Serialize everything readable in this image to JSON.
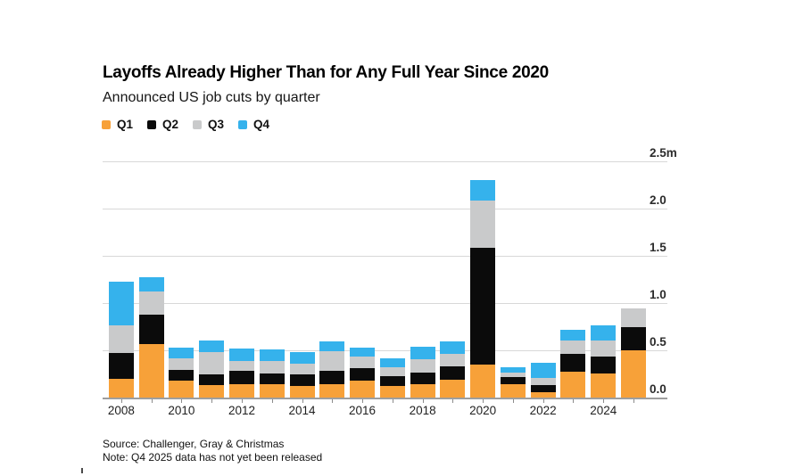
{
  "header": {
    "title": "Layoffs Already Higher Than for Any Full Year Since 2020",
    "subtitle": "Announced US job cuts by quarter"
  },
  "legend": [
    {
      "label": "Q1",
      "color": "#f7a139"
    },
    {
      "label": "Q2",
      "color": "#0b0b0b"
    },
    {
      "label": "Q3",
      "color": "#c9cacb"
    },
    {
      "label": "Q4",
      "color": "#35b2ec"
    }
  ],
  "colors": {
    "background": "#ffffff",
    "grid": "#d8d8d8",
    "axis": "#9e9e9e",
    "tick": "#8c8c8c",
    "q1_orange": "#f7a139",
    "q2_black": "#0b0b0b",
    "q3_gray": "#c9cacb",
    "q4_blue": "#35b2ec"
  },
  "chart_data": {
    "type": "bar",
    "stacked": true,
    "title": "Layoffs Already Higher Than for Any Full Year Since 2020",
    "subtitle": "Announced US job cuts by quarter",
    "unit": "millions of announced US job cuts",
    "categories": [
      "2008",
      "2009",
      "2010",
      "2011",
      "2012",
      "2013",
      "2014",
      "2015",
      "2016",
      "2017",
      "2018",
      "2019",
      "2020",
      "2021",
      "2022",
      "2023",
      "2024",
      "2025"
    ],
    "series": [
      {
        "name": "Q1",
        "color": "#f7a139",
        "values": [
          0.201,
          0.563,
          0.181,
          0.131,
          0.143,
          0.145,
          0.121,
          0.14,
          0.181,
          0.126,
          0.14,
          0.19,
          0.347,
          0.145,
          0.056,
          0.27,
          0.257,
          0.497
        ]
      },
      {
        "name": "Q2",
        "color": "#0b0b0b",
        "values": [
          0.275,
          0.318,
          0.116,
          0.115,
          0.14,
          0.114,
          0.125,
          0.147,
          0.133,
          0.101,
          0.123,
          0.141,
          1.238,
          0.068,
          0.078,
          0.188,
          0.177,
          0.247
        ]
      },
      {
        "name": "Q3",
        "color": "#c9cacb",
        "values": [
          0.287,
          0.24,
          0.114,
          0.233,
          0.103,
          0.128,
          0.117,
          0.206,
          0.122,
          0.094,
          0.141,
          0.128,
          0.497,
          0.053,
          0.076,
          0.146,
          0.174,
          0.202
        ]
      },
      {
        "name": "Q4",
        "color": "#35b2ec",
        "values": [
          0.461,
          0.151,
          0.119,
          0.127,
          0.137,
          0.122,
          0.12,
          0.105,
          0.091,
          0.097,
          0.134,
          0.134,
          0.222,
          0.057,
          0.154,
          0.117,
          0.155,
          null
        ]
      }
    ],
    "ylim": [
      0,
      2.5
    ],
    "yticks": [
      {
        "v": 0.0,
        "label": "0.0"
      },
      {
        "v": 0.5,
        "label": "0.5"
      },
      {
        "v": 1.0,
        "label": "1.0"
      },
      {
        "v": 1.5,
        "label": "1.5"
      },
      {
        "v": 2.0,
        "label": "2.0"
      },
      {
        "v": 2.5,
        "label": "2.5m"
      }
    ],
    "xtick_labels": [
      "2008",
      "2010",
      "2012",
      "2014",
      "2016",
      "2018",
      "2020",
      "2022",
      "2024"
    ],
    "grid": true,
    "legend_position": "top-left",
    "yaxis_side": "right"
  },
  "footer": {
    "source": "Source: Challenger, Gray & Christmas",
    "note": "Note: Q4 2025 data has not yet been released"
  }
}
